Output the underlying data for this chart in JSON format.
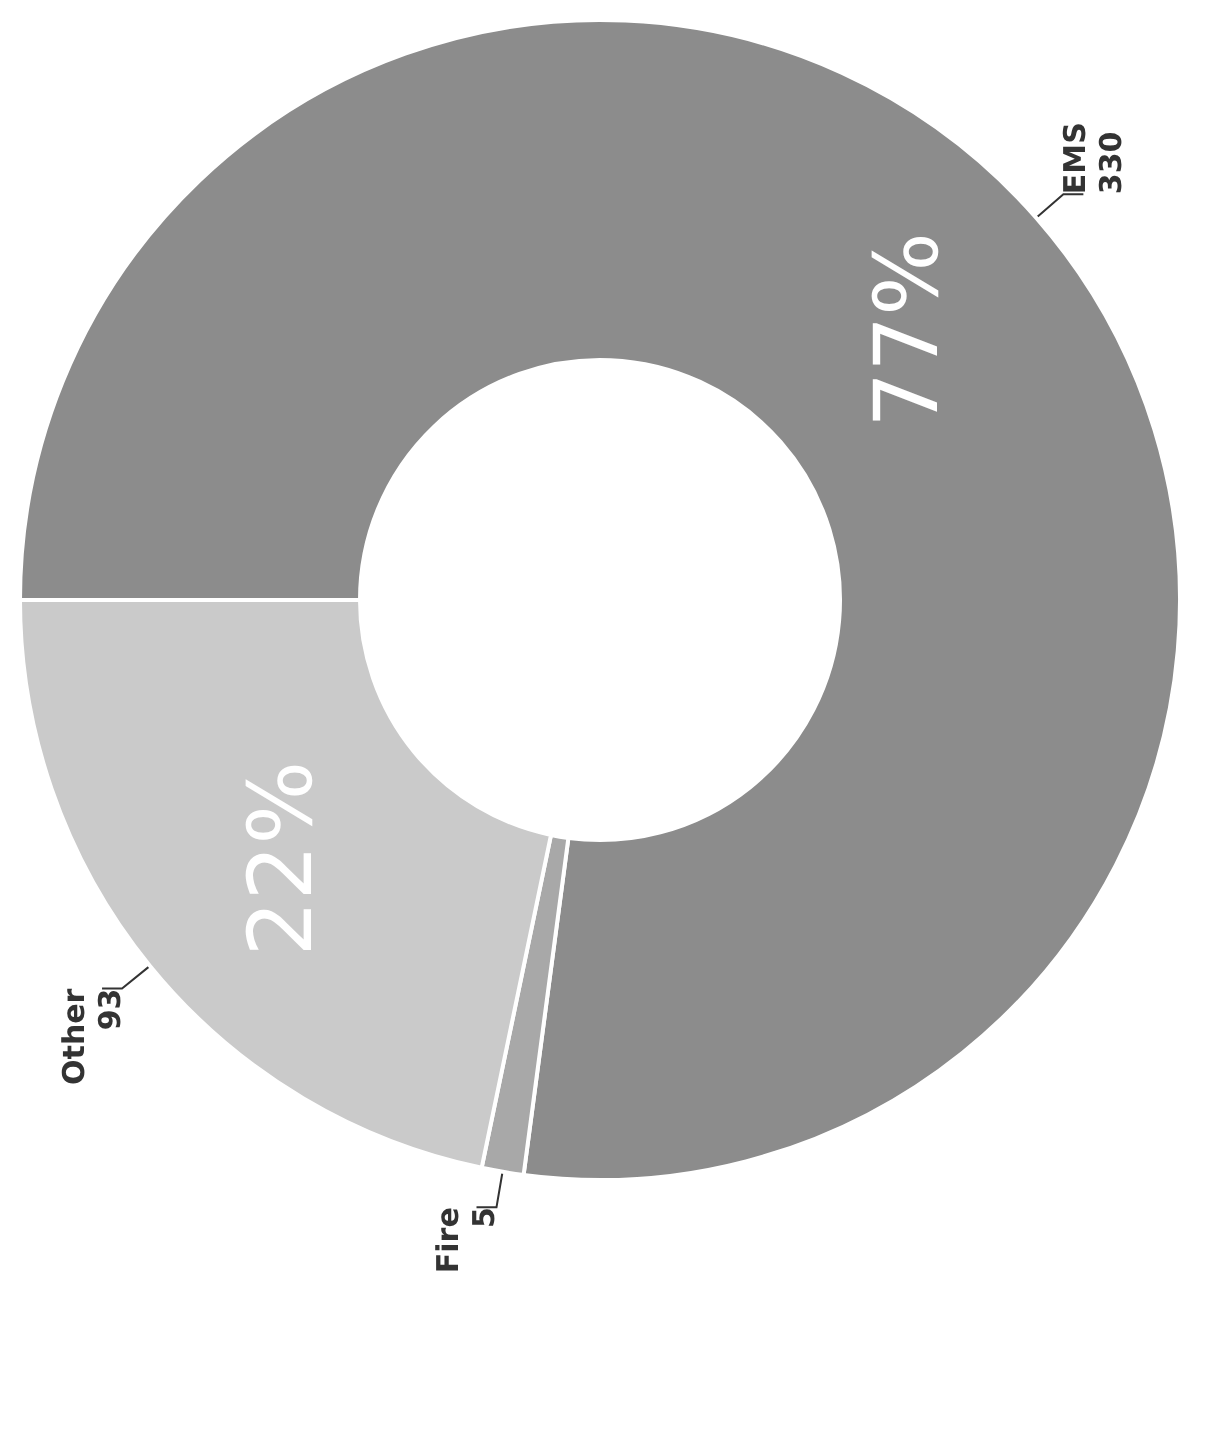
{
  "chart_data": {
    "type": "donut",
    "categories": [
      "EMS",
      "Fire",
      "Other"
    ],
    "values": [
      330,
      5,
      93
    ],
    "colors": [
      "#8c8c8c",
      "#a8a8a8",
      "#cacaca"
    ],
    "annotations": [
      {
        "text": "77%",
        "x": "EMS"
      },
      {
        "text": "22%",
        "x": "Other"
      }
    ],
    "data_labels": true,
    "legend": false
  }
}
